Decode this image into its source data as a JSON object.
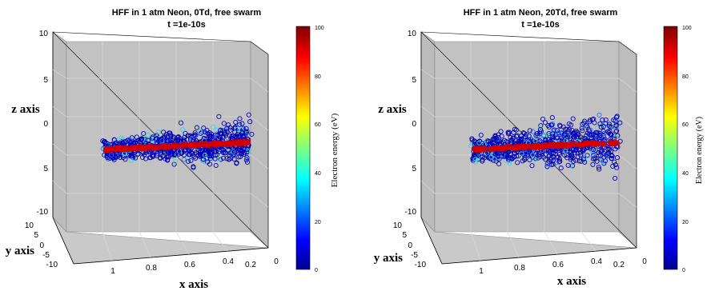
{
  "colorbar": {
    "label": "Electron energy (eV)",
    "ticks": [
      "100",
      "80",
      "60",
      "40",
      "20",
      "0"
    ]
  },
  "chart_data": [
    {
      "type": "scatter",
      "title": "HFF in 1 atm Neon, 0Td, free swarm",
      "subtitle": "t =1e-10s",
      "xlabel": "x axis",
      "ylabel": "y axis",
      "zlabel": "z axis",
      "x_ticks": [
        "1",
        "0.8",
        "0.6",
        "0.4",
        "0.2",
        "0"
      ],
      "y_ticks": [
        "10",
        "5",
        "0",
        "-5",
        "-10"
      ],
      "z_ticks": [
        "10",
        "5",
        "0",
        "5",
        "-10"
      ],
      "clim": [
        0,
        100
      ],
      "colormap": "jet",
      "marker": "circle",
      "color_low": "#0000b8",
      "color_high": "#d40000",
      "grid": true,
      "box": true,
      "background": "#c0c0c0"
    },
    {
      "type": "scatter",
      "title": "HFF in 1 atm Neon, 20Td, free swarm",
      "subtitle": "t =1e-10s",
      "xlabel": "x axis",
      "ylabel": "y axis",
      "zlabel": "z axis",
      "x_ticks": [
        "1",
        "0.8",
        "0.6",
        "0.4",
        "0.2",
        "0"
      ],
      "y_ticks": [
        "10",
        "5",
        "0",
        "-5",
        "-10"
      ],
      "z_ticks": [
        "10",
        "5",
        "0",
        "5",
        "-10"
      ],
      "clim": [
        0,
        100
      ],
      "colormap": "jet",
      "marker": "circle",
      "color_low": "#0000b8",
      "color_high": "#d40000",
      "grid": true,
      "box": true,
      "background": "#c0c0c0"
    }
  ]
}
